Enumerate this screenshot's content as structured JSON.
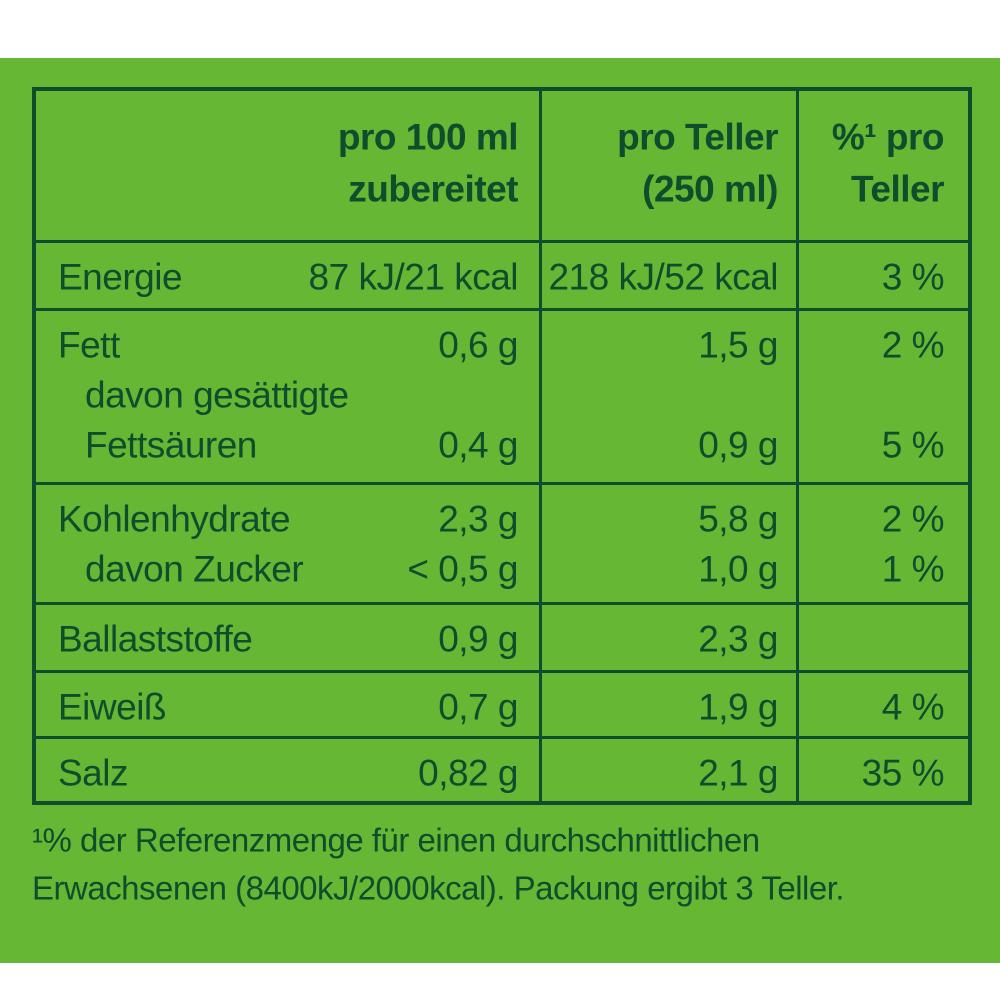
{
  "table": {
    "columns": [
      [
        "pro 100 ml",
        "zubereitet"
      ],
      [
        "pro Teller",
        "(250 ml)"
      ],
      [
        "%¹ pro",
        "Teller"
      ]
    ],
    "rows": [
      {
        "label": "Energie",
        "values": [
          "87 kJ/21 kcal",
          "218 kJ/52 kcal",
          "3 %"
        ]
      },
      {
        "label": "Fett",
        "values": [
          "0,6 g",
          "1,5 g",
          "2 %"
        ],
        "sub": [
          {
            "label": [
              "davon gesättigte",
              "Fettsäuren"
            ],
            "values": [
              "0,4 g",
              "0,9 g",
              "5 %"
            ]
          }
        ]
      },
      {
        "label": "Kohlenhydrate",
        "values": [
          "2,3 g",
          "5,8 g",
          "2 %"
        ],
        "sub": [
          {
            "label": [
              "davon Zucker"
            ],
            "values": [
              "< 0,5 g",
              "1,0 g",
              "1 %"
            ]
          }
        ]
      },
      {
        "label": "Ballaststoffe",
        "values": [
          "0,9 g",
          "2,3 g",
          null
        ]
      },
      {
        "label": "Eiweiß",
        "values": [
          "0,7 g",
          "1,9 g",
          "4 %"
        ]
      },
      {
        "label": "Salz",
        "values": [
          "0,82 g",
          "2,1 g",
          "35 %"
        ]
      }
    ]
  },
  "footnote": [
    "¹% der Referenzmenge für einen durchschnittlichen",
    "Erwachsenen (8400kJ/2000kcal). Packung ergibt 3 Teller."
  ]
}
